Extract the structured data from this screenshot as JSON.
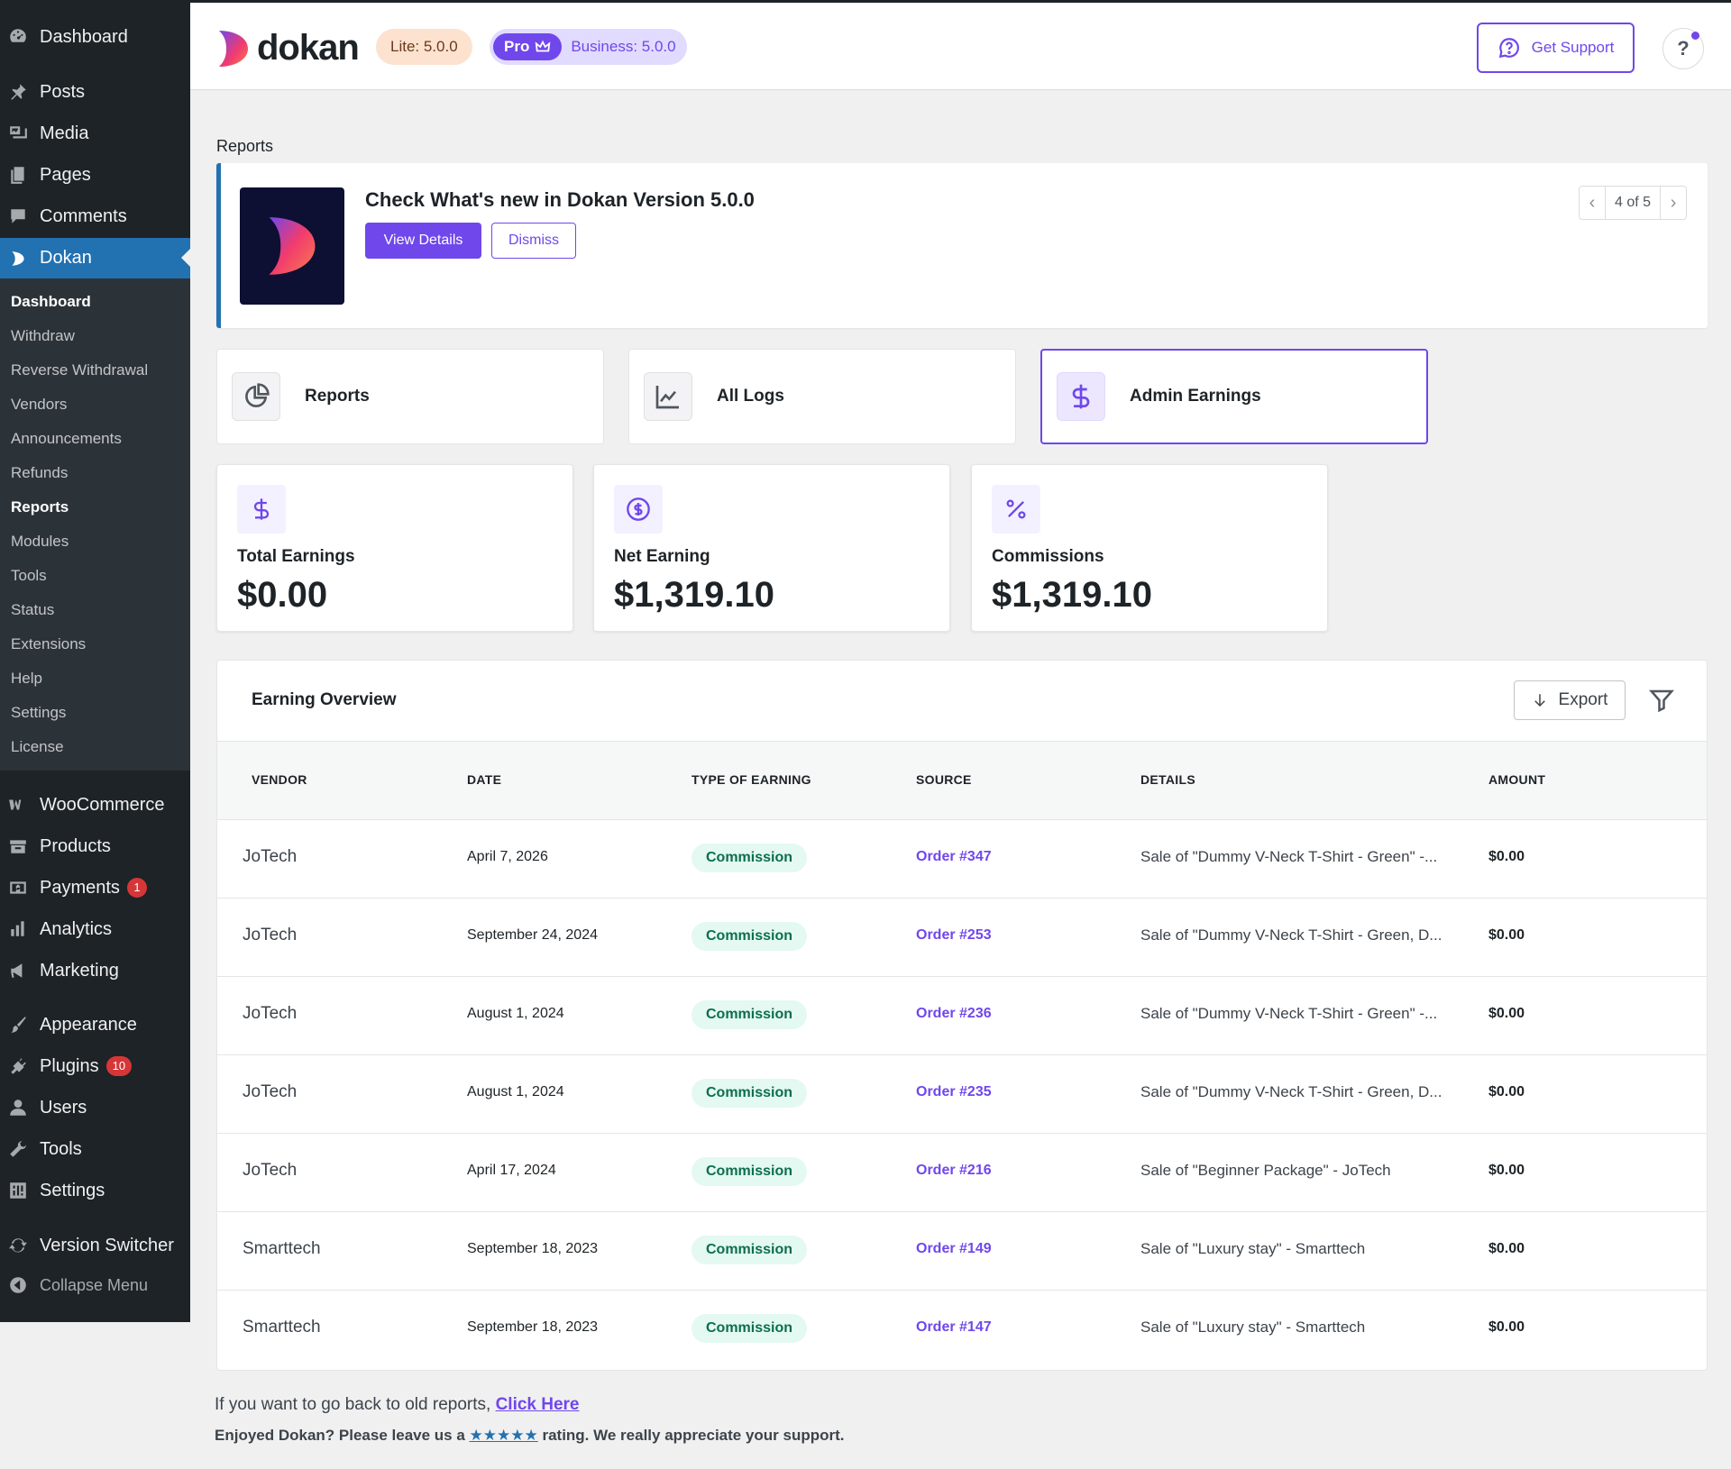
{
  "sidebar": {
    "top_items": [
      {
        "label": "Dashboard",
        "icon": "dashboard-icon"
      },
      {
        "label": "Posts",
        "icon": "pin-icon"
      },
      {
        "label": "Media",
        "icon": "media-icon"
      },
      {
        "label": "Pages",
        "icon": "pages-icon"
      },
      {
        "label": "Comments",
        "icon": "comments-icon"
      },
      {
        "label": "Dokan",
        "icon": "dokan-icon"
      }
    ],
    "dokan_submenu": [
      "Dashboard",
      "Withdraw",
      "Reverse Withdrawal",
      "Vendors",
      "Announcements",
      "Refunds",
      "Reports",
      "Modules",
      "Tools",
      "Status",
      "Extensions",
      "Help",
      "Settings",
      "License"
    ],
    "bottom_items": [
      {
        "label": "WooCommerce",
        "icon": "woocommerce-icon"
      },
      {
        "label": "Products",
        "icon": "products-icon"
      },
      {
        "label": "Payments",
        "icon": "payments-icon",
        "badge": "1"
      },
      {
        "label": "Analytics",
        "icon": "analytics-icon"
      },
      {
        "label": "Marketing",
        "icon": "megaphone-icon"
      },
      {
        "label": "Appearance",
        "icon": "brush-icon"
      },
      {
        "label": "Plugins",
        "icon": "plugin-icon",
        "badge": "10"
      },
      {
        "label": "Users",
        "icon": "user-icon"
      },
      {
        "label": "Tools",
        "icon": "wrench-icon"
      },
      {
        "label": "Settings",
        "icon": "settings-icon"
      },
      {
        "label": "Version Switcher",
        "icon": "refresh-icon"
      },
      {
        "label": "Collapse Menu",
        "icon": "collapse-icon"
      }
    ]
  },
  "header": {
    "logo_text": "dokan",
    "lite_badge": "Lite: 5.0.0",
    "pro_label": "Pro",
    "business_badge": "Business: 5.0.0",
    "support_label": "Get Support",
    "help_label": "?"
  },
  "page": {
    "heading": "Reports"
  },
  "notice": {
    "title": "Check What's new in Dokan Version 5.0.0",
    "view_label": "View Details",
    "dismiss_label": "Dismiss",
    "pager": "4 of 5"
  },
  "tabs": [
    {
      "label": "Reports",
      "icon": "pie-chart-icon"
    },
    {
      "label": "All Logs",
      "icon": "line-chart-icon"
    },
    {
      "label": "Admin Earnings",
      "icon": "dollar-icon"
    }
  ],
  "stats": [
    {
      "label": "Total Earnings",
      "value": "$0.00",
      "icon": "dollar-icon"
    },
    {
      "label": "Net Earning",
      "value": "$1,319.10",
      "icon": "dollar-circle-icon"
    },
    {
      "label": "Commissions",
      "value": "$1,319.10",
      "icon": "percent-icon"
    }
  ],
  "overview": {
    "title": "Earning Overview",
    "export_label": "Export",
    "columns": [
      "VENDOR",
      "DATE",
      "TYPE OF EARNING",
      "SOURCE",
      "DETAILS",
      "AMOUNT"
    ],
    "rows": [
      {
        "vendor": "JoTech",
        "date": "April 7, 2026",
        "type": "Commission",
        "source": "Order #347",
        "details": "Sale of \"Dummy V-Neck T-Shirt - Green\" -...",
        "amount": "$0.00"
      },
      {
        "vendor": "JoTech",
        "date": "September 24, 2024",
        "type": "Commission",
        "source": "Order #253",
        "details": "Sale of \"Dummy V-Neck T-Shirt - Green, D...",
        "amount": "$0.00"
      },
      {
        "vendor": "JoTech",
        "date": "August 1, 2024",
        "type": "Commission",
        "source": "Order #236",
        "details": "Sale of \"Dummy V-Neck T-Shirt - Green\" -...",
        "amount": "$0.00"
      },
      {
        "vendor": "JoTech",
        "date": "August 1, 2024",
        "type": "Commission",
        "source": "Order #235",
        "details": "Sale of \"Dummy V-Neck T-Shirt - Green, D...",
        "amount": "$0.00"
      },
      {
        "vendor": "JoTech",
        "date": "April 17, 2024",
        "type": "Commission",
        "source": "Order #216",
        "details": "Sale of \"Beginner Package\" - JoTech",
        "amount": "$0.00"
      },
      {
        "vendor": "Smarttech",
        "date": "September 18, 2023",
        "type": "Commission",
        "source": "Order #149",
        "details": "Sale of \"Luxury stay\" - Smarttech",
        "amount": "$0.00"
      },
      {
        "vendor": "Smarttech",
        "date": "September 18, 2023",
        "type": "Commission",
        "source": "Order #147",
        "details": "Sale of \"Luxury stay\" - Smarttech",
        "amount": "$0.00"
      }
    ]
  },
  "footer": {
    "old_reports_text": "If you want to go back to old reports, ",
    "old_reports_link": "Click Here",
    "rating_prefix": "Enjoyed Dokan? Please leave us a ",
    "rating_stars": "★★★★★",
    "rating_suffix": " rating. We really appreciate your support."
  },
  "colors": {
    "accent": "#7047eb",
    "wp_blue": "#2271b1",
    "sidebar_bg": "#1d2327"
  }
}
